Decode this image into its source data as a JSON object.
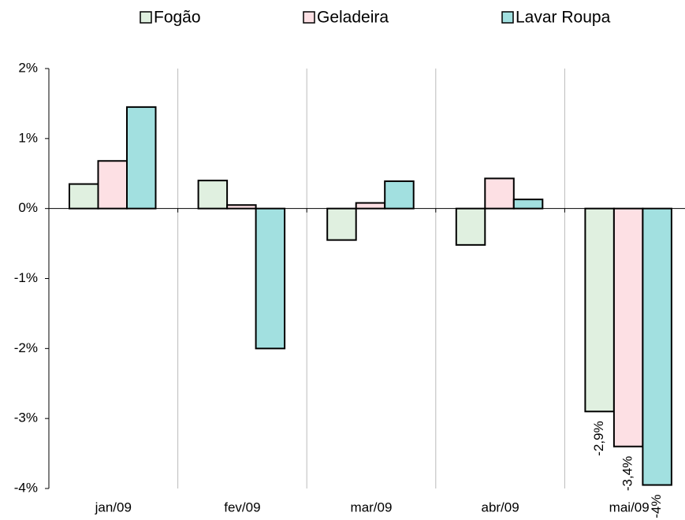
{
  "chart_data": {
    "type": "bar",
    "categories": [
      "jan/09",
      "fev/09",
      "mar/09",
      "abr/09",
      "mai/09"
    ],
    "series": [
      {
        "name": "Fogão",
        "color": "#e0f0e0",
        "values": [
          0.35,
          0.4,
          -0.45,
          -0.52,
          -2.9
        ],
        "value_labels": [
          null,
          null,
          null,
          null,
          "-2,9%"
        ]
      },
      {
        "name": "Geladeira",
        "color": "#fde0e4",
        "values": [
          0.68,
          0.05,
          0.08,
          0.43,
          -3.4
        ],
        "value_labels": [
          null,
          null,
          null,
          null,
          "-3,4%"
        ]
      },
      {
        "name": "Lavar Roupa",
        "color": "#a2e0e0",
        "values": [
          1.45,
          -2.0,
          0.39,
          0.13,
          -3.95
        ],
        "value_labels": [
          null,
          null,
          null,
          null,
          "-4%"
        ]
      }
    ],
    "ylim": [
      -4,
      2
    ],
    "yticks": [
      {
        "value": -4,
        "label": "-4%"
      },
      {
        "value": -3,
        "label": "-3%"
      },
      {
        "value": -2,
        "label": "-2%"
      },
      {
        "value": -1,
        "label": "-1%"
      },
      {
        "value": 0,
        "label": "0%"
      },
      {
        "value": 1,
        "label": "1%"
      },
      {
        "value": 2,
        "label": "2%"
      }
    ],
    "legend": "top"
  }
}
